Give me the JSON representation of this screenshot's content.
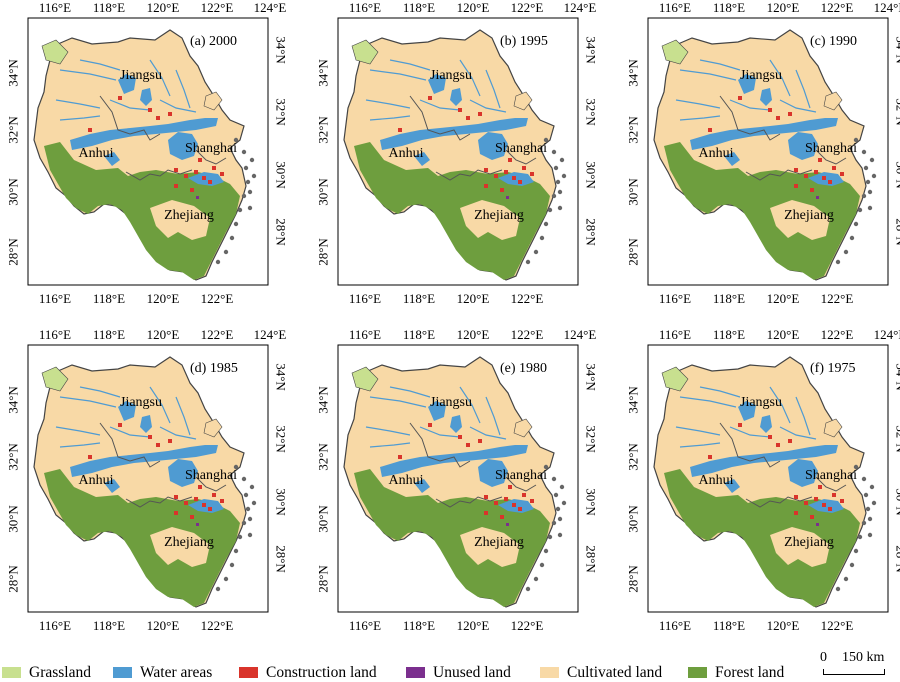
{
  "panels": [
    {
      "label": "(a) 2000"
    },
    {
      "label": "(b) 1995"
    },
    {
      "label": "(c) 1990"
    },
    {
      "label": "(d) 1985"
    },
    {
      "label": "(e) 1980"
    },
    {
      "label": "(f) 1975"
    }
  ],
  "axes": {
    "top_ticks": [
      "116°E",
      "118°E",
      "120°E",
      "122°E",
      "124°E"
    ],
    "bottom_ticks": [
      "116°E",
      "118°E",
      "120°E",
      "122°E"
    ],
    "left_ticks": [
      "34°N",
      "32°N",
      "30°N",
      "28°N"
    ],
    "right_ticks": [
      "34°N",
      "32°N",
      "30°N",
      "28°N"
    ]
  },
  "regions": [
    "Jiangsu",
    "Anhui",
    "Shanghai",
    "Zhejiang"
  ],
  "legend": [
    {
      "label": "Grassland",
      "color": "#c8e08f"
    },
    {
      "label": "Water areas",
      "color": "#4f9bd2"
    },
    {
      "label": "Construction land",
      "color": "#d9342b"
    },
    {
      "label": "Unused land",
      "color": "#7b2f8e"
    },
    {
      "label": "Cultivated land",
      "color": "#f8d9a6"
    },
    {
      "label": "Forest land",
      "color": "#6e9e3e"
    }
  ],
  "scale_bar": {
    "zero": "0",
    "distance": "150 km"
  }
}
